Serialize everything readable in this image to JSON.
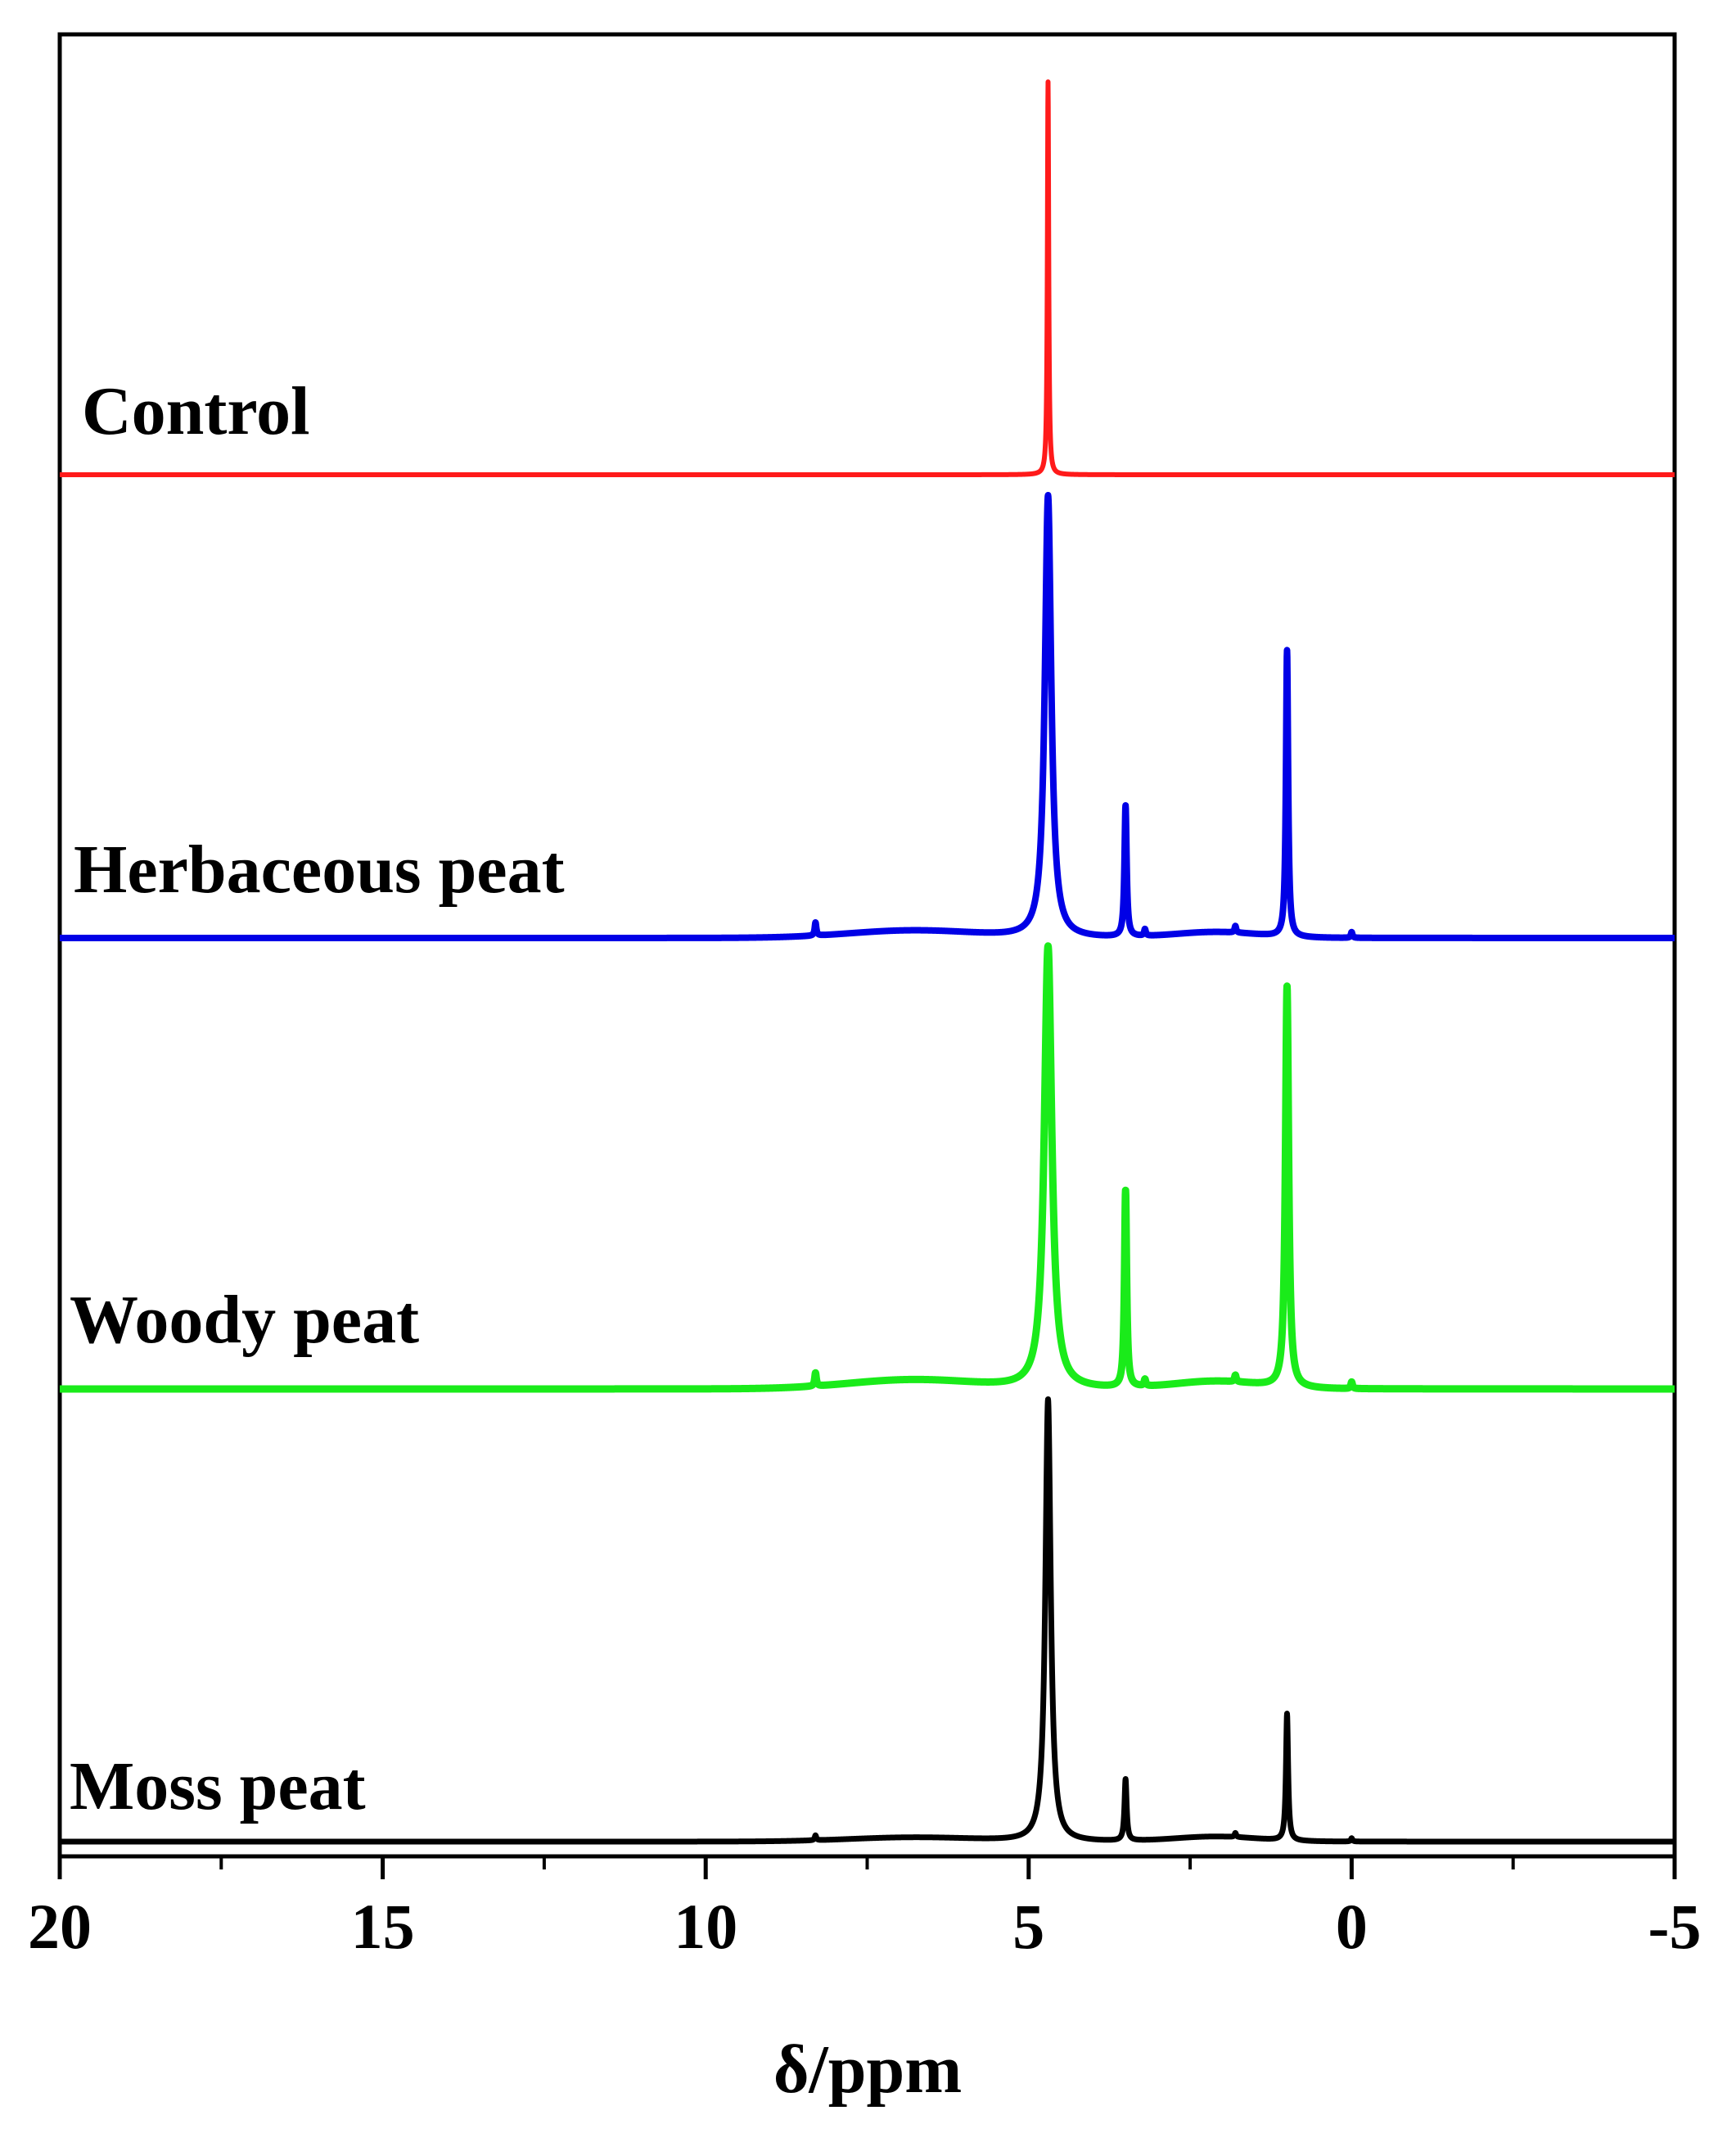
{
  "chart_data": {
    "type": "line",
    "xlabel": "δ/ppm",
    "ylabel": "",
    "xlim": [
      20,
      -5
    ],
    "x_reversed": true,
    "x_ticks": [
      20,
      15,
      10,
      5,
      0,
      -5
    ],
    "x_tick_labels": [
      "20",
      "15",
      "10",
      "5",
      "0",
      "-5"
    ],
    "grid": false,
    "legend": "labels-on-traces",
    "series": [
      {
        "name": "Control",
        "color": "#ff1a1a",
        "baseline": 0,
        "shoulders": [],
        "peaks": [
          {
            "x": 4.7,
            "height": 48,
            "width": 0.012
          }
        ],
        "x": [
          20,
          15,
          10,
          6,
          4.8,
          4.72,
          4.7,
          4.68,
          4.6,
          3,
          1,
          -5
        ],
        "y": [
          0,
          0,
          0,
          0,
          0,
          5,
          48,
          5,
          0,
          0,
          0,
          0
        ]
      },
      {
        "name": "Herbaceous peat",
        "color": "#0000e6",
        "baseline": 0,
        "shoulders": [
          {
            "x": 6.8,
            "height": 0.9,
            "width": 1.4
          },
          {
            "x": 2.1,
            "height": 0.7,
            "width": 0.9
          }
        ],
        "peaks": [
          {
            "x": 4.7,
            "height": 54,
            "width": 0.06
          },
          {
            "x": 3.5,
            "height": 16,
            "width": 0.02
          },
          {
            "x": 1.0,
            "height": 35,
            "width": 0.02
          },
          {
            "x": 8.3,
            "height": 1.6,
            "width": 0.015
          },
          {
            "x": 3.2,
            "height": 0.8,
            "width": 0.015
          },
          {
            "x": 1.8,
            "height": 0.8,
            "width": 0.015
          },
          {
            "x": 0.0,
            "height": 0.7,
            "width": 0.015
          }
        ],
        "x": [
          20,
          15,
          10,
          8.3,
          6.8,
          5.5,
          4.7,
          4.0,
          3.5,
          2.8,
          2.1,
          1.0,
          0.5,
          0,
          -5
        ],
        "y": [
          0,
          0.1,
          0.2,
          1.6,
          0.9,
          1.3,
          54,
          1.2,
          16,
          0.3,
          0.7,
          35,
          0.3,
          0.7,
          0
        ]
      },
      {
        "name": "Woody peat",
        "color": "#1aeb1a",
        "baseline": 0,
        "shoulders": [
          {
            "x": 6.8,
            "height": 1.1,
            "width": 1.4
          },
          {
            "x": 2.1,
            "height": 0.9,
            "width": 0.9
          }
        ],
        "peaks": [
          {
            "x": 4.7,
            "height": 54,
            "width": 0.07
          },
          {
            "x": 3.5,
            "height": 24,
            "width": 0.02
          },
          {
            "x": 1.0,
            "height": 49,
            "width": 0.03
          },
          {
            "x": 8.3,
            "height": 1.6,
            "width": 0.015
          },
          {
            "x": 3.2,
            "height": 0.8,
            "width": 0.015
          },
          {
            "x": 1.8,
            "height": 0.8,
            "width": 0.015
          },
          {
            "x": 0.0,
            "height": 0.8,
            "width": 0.015
          }
        ],
        "x": [
          20,
          15,
          10,
          8.3,
          6.8,
          5.5,
          4.7,
          4.0,
          3.5,
          2.8,
          2.1,
          1.0,
          0.5,
          0,
          -5
        ],
        "y": [
          0,
          0.1,
          0.2,
          1.6,
          1.1,
          1.5,
          54,
          1.4,
          24,
          0.3,
          0.9,
          49,
          0.3,
          0.8,
          0
        ]
      },
      {
        "name": "Moss peat",
        "color": "#000000",
        "baseline": 0,
        "shoulders": [
          {
            "x": 6.8,
            "height": 0.5,
            "width": 1.4
          },
          {
            "x": 2.1,
            "height": 0.6,
            "width": 0.9
          }
        ],
        "peaks": [
          {
            "x": 4.7,
            "height": 54,
            "width": 0.05
          },
          {
            "x": 3.5,
            "height": 7.5,
            "width": 0.02
          },
          {
            "x": 1.0,
            "height": 15.5,
            "width": 0.02
          },
          {
            "x": 8.3,
            "height": 0.6,
            "width": 0.015
          },
          {
            "x": 1.8,
            "height": 0.5,
            "width": 0.015
          },
          {
            "x": 0.0,
            "height": 0.4,
            "width": 0.015
          }
        ],
        "x": [
          20,
          15,
          10,
          8.3,
          6.8,
          5.5,
          4.7,
          4.0,
          3.5,
          2.8,
          2.1,
          1.0,
          0.5,
          0,
          -5
        ],
        "y": [
          0,
          0,
          0.1,
          0.6,
          0.5,
          0.8,
          54,
          0.9,
          7.5,
          0.2,
          0.6,
          15.5,
          0.2,
          0.4,
          0
        ]
      }
    ]
  }
}
